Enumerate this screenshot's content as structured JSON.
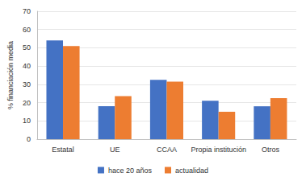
{
  "chart_data": {
    "type": "bar",
    "y_label": "% financiación media",
    "categories": [
      "Estatal",
      "UE",
      "CCAA",
      "Propia institución",
      "Otros"
    ],
    "series": [
      {
        "name": "hace 20 años",
        "color": "#4472c4",
        "values": [
          54,
          18,
          32.5,
          21,
          18
        ]
      },
      {
        "name": "actualidad",
        "color": "#ed7d31",
        "values": [
          51,
          23.5,
          31.5,
          15,
          22.5
        ]
      }
    ],
    "ylim": [
      0,
      70
    ],
    "yticks": [
      0,
      10,
      20,
      30,
      40,
      50,
      60,
      70
    ],
    "grid": true,
    "legend": "bottom"
  }
}
